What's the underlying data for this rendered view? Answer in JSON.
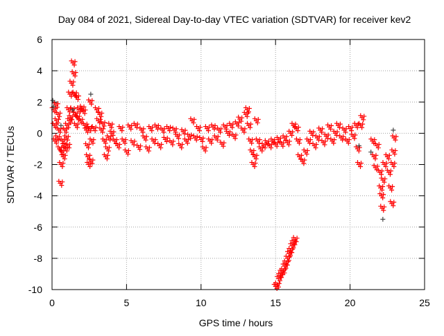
{
  "chart_data": {
    "type": "scatter",
    "title": "Day 084 of 2021, Sidereal Day-to-day VTEC variation (SDTVAR) for receiver kev2",
    "xlabel": "GPS time / hours",
    "ylabel": "SDTVAR / TECUs",
    "xlim": [
      0,
      25
    ],
    "ylim": [
      -10,
      6
    ],
    "xticks": [
      "0",
      "5",
      "10",
      "15",
      "20",
      "25"
    ],
    "yticks": [
      "-10",
      "-8",
      "-6",
      "-4",
      "-2",
      "0",
      "2",
      "4",
      "6"
    ],
    "grid": true,
    "legend": "none",
    "series": [
      {
        "name": "red",
        "color": "#ff0000",
        "marker": "+",
        "points": [
          [
            0.1,
            1.5
          ],
          [
            0.15,
            0.5
          ],
          [
            0.2,
            -0.5
          ],
          [
            0.25,
            1.8
          ],
          [
            0.3,
            0.8
          ],
          [
            0.35,
            -0.3
          ],
          [
            0.4,
            1.2
          ],
          [
            0.45,
            0.2
          ],
          [
            0.5,
            -1
          ],
          [
            0.55,
            -3.2
          ],
          [
            0.6,
            -2
          ],
          [
            0.65,
            -1.2
          ],
          [
            0.7,
            -0.5
          ],
          [
            0.75,
            -1.5
          ],
          [
            0.8,
            -0.8
          ],
          [
            0.85,
            0.2
          ],
          [
            0.9,
            -1
          ],
          [
            0.95,
            -0.3
          ],
          [
            1.0,
            0.5
          ],
          [
            1.05,
            -0.8
          ],
          [
            1.1,
            1.5
          ],
          [
            1.15,
            0.8
          ],
          [
            1.2,
            2.5
          ],
          [
            1.25,
            1.0
          ],
          [
            1.3,
            3.2
          ],
          [
            1.35,
            1.5
          ],
          [
            1.4,
            4.5
          ],
          [
            1.45,
            3.8
          ],
          [
            1.5,
            2.5
          ],
          [
            1.55,
            1.2
          ],
          [
            1.6,
            0.5
          ],
          [
            1.65,
            2.3
          ],
          [
            1.7,
            1.0
          ],
          [
            1.8,
            1.5
          ],
          [
            1.9,
            0.8
          ],
          [
            2.0,
            1.6
          ],
          [
            2.1,
            1.4
          ],
          [
            2.2,
            0.5
          ],
          [
            2.3,
            0.2
          ],
          [
            2.35,
            -0.8
          ],
          [
            2.4,
            -1.5
          ],
          [
            2.45,
            -2
          ],
          [
            2.5,
            0.3
          ],
          [
            2.55,
            2.0
          ],
          [
            2.6,
            -1.8
          ],
          [
            2.65,
            -0.5
          ],
          [
            2.8,
            0.3
          ],
          [
            3.0,
            1.5
          ],
          [
            3.1,
            0.8
          ],
          [
            3.2,
            1.2
          ],
          [
            3.3,
            0.2
          ],
          [
            3.4,
            0.6
          ],
          [
            3.5,
            -0.5
          ],
          [
            3.6,
            -1.5
          ],
          [
            3.7,
            -1.0
          ],
          [
            3.8,
            -0.3
          ],
          [
            3.9,
            0.5
          ],
          [
            4.0,
            0
          ],
          [
            4.2,
            -0.5
          ],
          [
            4.4,
            -0.8
          ],
          [
            4.6,
            0.3
          ],
          [
            4.8,
            -0.5
          ],
          [
            5.0,
            -1.2
          ],
          [
            5.2,
            0.4
          ],
          [
            5.4,
            -0.6
          ],
          [
            5.6,
            0.5
          ],
          [
            5.8,
            -0.9
          ],
          [
            6.0,
            0.2
          ],
          [
            6.2,
            -0.3
          ],
          [
            6.4,
            -1.0
          ],
          [
            6.6,
            0.3
          ],
          [
            6.8,
            -0.5
          ],
          [
            7.0,
            0.4
          ],
          [
            7.2,
            -0.8
          ],
          [
            7.4,
            0.2
          ],
          [
            7.6,
            -0.4
          ],
          [
            7.8,
            0.3
          ],
          [
            8.0,
            -0.6
          ],
          [
            8.2,
            0.2
          ],
          [
            8.4,
            -0.2
          ],
          [
            8.6,
            -0.8
          ],
          [
            8.8,
            0.1
          ],
          [
            9.0,
            -0.5
          ],
          [
            9.2,
            -0.2
          ],
          [
            9.4,
            0.8
          ],
          [
            9.6,
            -0.3
          ],
          [
            9.8,
            0.3
          ],
          [
            10.0,
            -0.4
          ],
          [
            10.2,
            -1.0
          ],
          [
            10.4,
            0.3
          ],
          [
            10.6,
            -0.5
          ],
          [
            10.8,
            0.4
          ],
          [
            11.0,
            -0.3
          ],
          [
            11.2,
            0.2
          ],
          [
            11.4,
            -0.7
          ],
          [
            11.6,
            0.4
          ],
          [
            11.8,
            0
          ],
          [
            12.0,
            0.5
          ],
          [
            12.2,
            -0.2
          ],
          [
            12.4,
            0.6
          ],
          [
            12.6,
            0.9
          ],
          [
            12.8,
            0.2
          ],
          [
            13.0,
            1.2
          ],
          [
            13.1,
            1.5
          ],
          [
            13.2,
            0.5
          ],
          [
            13.3,
            -0.5
          ],
          [
            13.4,
            -1.2
          ],
          [
            13.5,
            -2
          ],
          [
            13.6,
            -1.5
          ],
          [
            13.7,
            0.8
          ],
          [
            13.8,
            -0.5
          ],
          [
            14.0,
            -1.0
          ],
          [
            14.2,
            -0.8
          ],
          [
            14.4,
            -0.6
          ],
          [
            14.6,
            -0.8
          ],
          [
            14.8,
            -0.5
          ],
          [
            15.0,
            -0.7
          ],
          [
            15.2,
            -0.4
          ],
          [
            15.4,
            -0.7
          ],
          [
            15.6,
            -0.3
          ],
          [
            15.8,
            -0.6
          ],
          [
            16.0,
            0
          ],
          [
            16.2,
            0.5
          ],
          [
            16.4,
            0.3
          ],
          [
            16.5,
            -0.5
          ],
          [
            16.6,
            -1.5
          ],
          [
            16.8,
            -1.8
          ],
          [
            17.0,
            -1.2
          ],
          [
            17.2,
            -0.5
          ],
          [
            17.4,
            0
          ],
          [
            17.6,
            -0.8
          ],
          [
            17.8,
            -0.3
          ],
          [
            18.0,
            0.2
          ],
          [
            18.2,
            -0.6
          ],
          [
            18.4,
            -0.2
          ],
          [
            18.6,
            0.4
          ],
          [
            18.8,
            -0.5
          ],
          [
            19.0,
            0
          ],
          [
            19.2,
            0.5
          ],
          [
            19.4,
            -0.3
          ],
          [
            19.6,
            0.2
          ],
          [
            19.8,
            -0.5
          ],
          [
            20.0,
            0.3
          ],
          [
            20.2,
            -0.2
          ],
          [
            20.4,
            0.5
          ],
          [
            20.5,
            -1
          ],
          [
            20.6,
            -2
          ],
          [
            20.7,
            0.5
          ],
          [
            20.8,
            1.0
          ],
          [
            21.5,
            -0.5
          ],
          [
            21.6,
            -1.5
          ],
          [
            21.7,
            -2.2
          ],
          [
            21.8,
            -0.8
          ],
          [
            22.0,
            -2.5
          ],
          [
            22.05,
            -3.5
          ],
          [
            22.1,
            -4
          ],
          [
            22.15,
            -4.8
          ],
          [
            22.2,
            -3
          ],
          [
            22.3,
            -2
          ],
          [
            22.5,
            -1.5
          ],
          [
            22.6,
            -2.5
          ],
          [
            22.7,
            -3.5
          ],
          [
            22.8,
            -4.5
          ],
          [
            22.85,
            -2
          ],
          [
            22.9,
            -1.2
          ],
          [
            22.95,
            -0.3
          ],
          [
            15.0,
            -9.8
          ],
          [
            15.1,
            -9.7
          ],
          [
            15.2,
            -9.3
          ],
          [
            15.3,
            -9.1
          ],
          [
            15.4,
            -8.9
          ],
          [
            15.5,
            -8.8
          ],
          [
            15.6,
            -8.5
          ],
          [
            15.7,
            -8.3
          ],
          [
            15.8,
            -8.0
          ],
          [
            15.9,
            -7.7
          ],
          [
            16.0,
            -7.5
          ],
          [
            16.1,
            -7.2
          ],
          [
            16.2,
            -7.0
          ],
          [
            16.3,
            -6.8
          ]
        ]
      },
      {
        "name": "black",
        "color": "#444444",
        "marker": "+",
        "points": [
          [
            0.05,
            2.1
          ],
          [
            0.1,
            1.7
          ],
          [
            0.6,
            0.5
          ],
          [
            1.4,
            1.5
          ],
          [
            2.6,
            2.5
          ],
          [
            20.6,
            -0.8
          ],
          [
            21.4,
            -1.2
          ],
          [
            22.2,
            -5.5
          ],
          [
            22.9,
            0.2
          ]
        ]
      }
    ]
  }
}
